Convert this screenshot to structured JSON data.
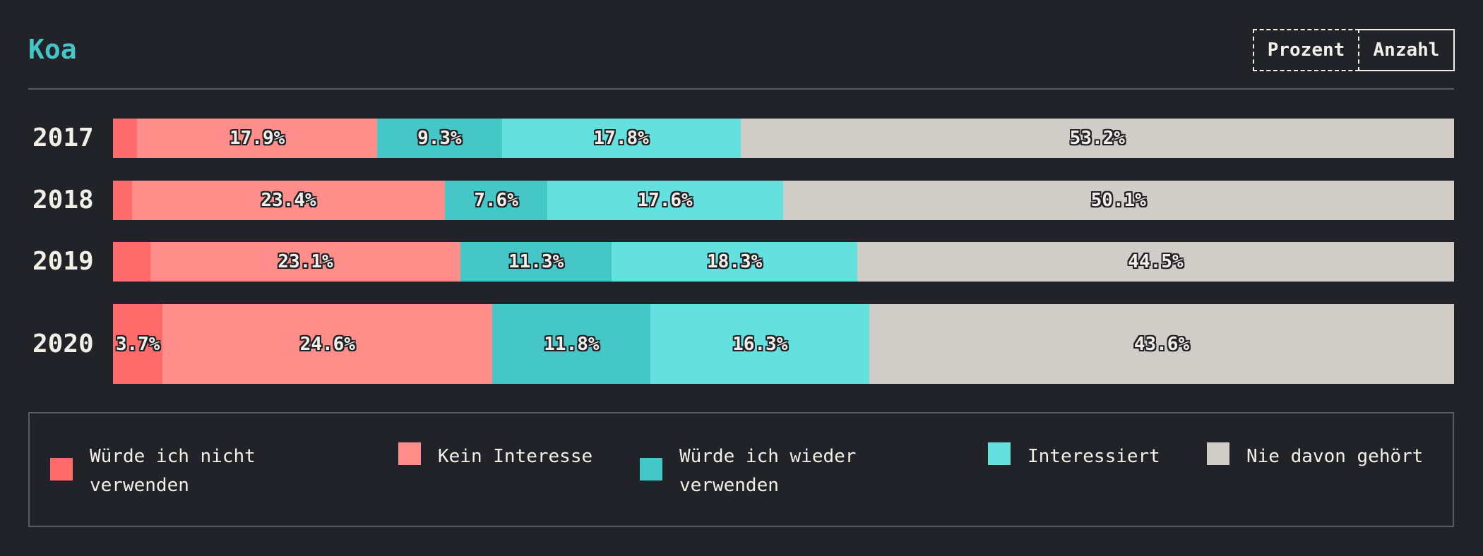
{
  "title": "Koa",
  "toggle": {
    "percent_label": "Prozent",
    "count_label": "Anzahl"
  },
  "colors": {
    "wuerde_nicht": "#ff6b6b",
    "kein_interesse": "#ff8e8b",
    "wieder": "#45c7c7",
    "interessiert": "#64e1df",
    "nie_gehoert": "#d0ccc8",
    "accent": "#45c5c6",
    "background": "#222328"
  },
  "chart_data": {
    "type": "bar",
    "orientation": "horizontal",
    "stacked": true,
    "unit": "%",
    "categories": [
      "2017",
      "2018",
      "2019",
      "2020"
    ],
    "series": [
      {
        "name": "Würde ich nicht verwenden",
        "values": [
          1.8,
          1.4,
          2.8,
          3.7
        ],
        "labels": [
          "",
          "",
          "",
          "3.7%"
        ]
      },
      {
        "name": "Kein Interesse",
        "values": [
          17.9,
          23.4,
          23.1,
          24.6
        ],
        "labels": [
          "17.9%",
          "23.4%",
          "23.1%",
          "24.6%"
        ]
      },
      {
        "name": "Würde ich wieder verwenden",
        "values": [
          9.3,
          7.6,
          11.3,
          11.8
        ],
        "labels": [
          "9.3%",
          "7.6%",
          "11.3%",
          "11.8%"
        ]
      },
      {
        "name": "Interessiert",
        "values": [
          17.8,
          17.6,
          18.3,
          16.3
        ],
        "labels": [
          "17.8%",
          "17.6%",
          "18.3%",
          "16.3%"
        ]
      },
      {
        "name": "Nie davon gehört",
        "values": [
          53.2,
          50.1,
          44.5,
          43.6
        ],
        "labels": [
          "53.2%",
          "50.1%",
          "44.5%",
          "43.6%"
        ]
      }
    ],
    "legend_position": "bottom",
    "grid": false
  },
  "legend": {
    "items": [
      {
        "label": "Würde ich nicht verwenden",
        "color_key": "wuerde_nicht"
      },
      {
        "label": "Kein Interesse",
        "color_key": "kein_interesse"
      },
      {
        "label": "Würde ich wieder verwenden",
        "color_key": "wieder"
      },
      {
        "label": "Interessiert",
        "color_key": "interessiert"
      },
      {
        "label": "Nie davon gehört",
        "color_key": "nie_gehoert"
      }
    ]
  }
}
